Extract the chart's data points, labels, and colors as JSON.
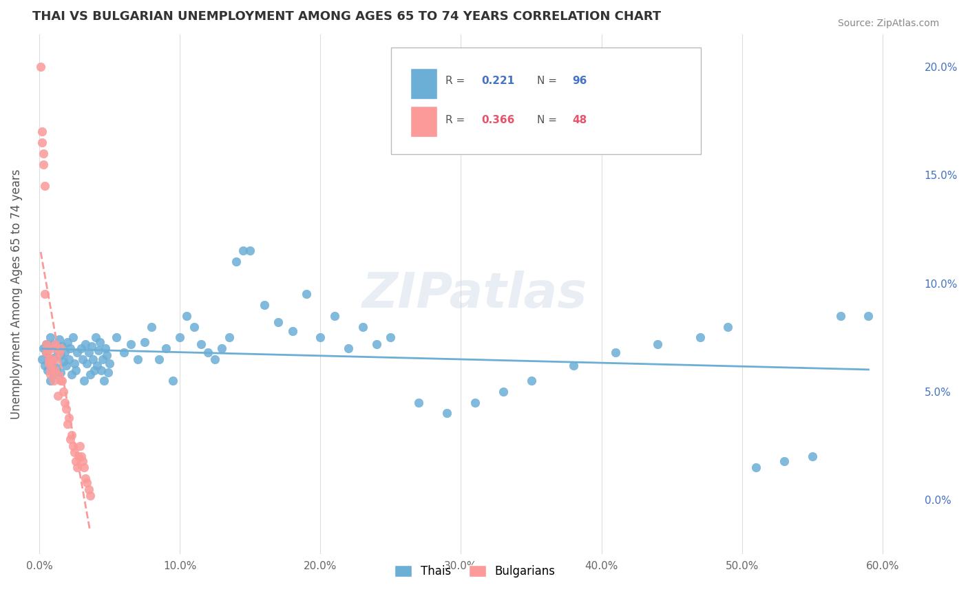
{
  "title": "THAI VS BULGARIAN UNEMPLOYMENT AMONG AGES 65 TO 74 YEARS CORRELATION CHART",
  "source": "Source: ZipAtlas.com",
  "ylabel": "Unemployment Among Ages 65 to 74 years",
  "xlabel_ticks": [
    "0.0%",
    "10.0%",
    "20.0%",
    "30.0%",
    "40.0%",
    "50.0%",
    "60.0%"
  ],
  "xlabel_vals": [
    0.0,
    0.1,
    0.2,
    0.3,
    0.4,
    0.5,
    0.6
  ],
  "ylabel_ticks": [
    "0.0%",
    "5.0%",
    "10.0%",
    "15.0%",
    "20.0%"
  ],
  "ylabel_vals": [
    0.0,
    0.05,
    0.1,
    0.15,
    0.2
  ],
  "xlim": [
    -0.005,
    0.625
  ],
  "ylim": [
    -0.025,
    0.215
  ],
  "thai_color": "#6baed6",
  "bulgarian_color": "#fb9a99",
  "thai_R": 0.221,
  "thai_N": 96,
  "bulgarian_R": 0.366,
  "bulgarian_N": 48,
  "watermark": "ZIPatlas",
  "thai_scatter_x": [
    0.002,
    0.003,
    0.004,
    0.005,
    0.005,
    0.006,
    0.007,
    0.008,
    0.008,
    0.009,
    0.01,
    0.01,
    0.011,
    0.012,
    0.013,
    0.014,
    0.015,
    0.015,
    0.016,
    0.017,
    0.018,
    0.019,
    0.02,
    0.021,
    0.022,
    0.023,
    0.024,
    0.025,
    0.026,
    0.027,
    0.03,
    0.031,
    0.032,
    0.033,
    0.034,
    0.035,
    0.036,
    0.037,
    0.038,
    0.039,
    0.04,
    0.041,
    0.042,
    0.043,
    0.044,
    0.045,
    0.046,
    0.047,
    0.048,
    0.049,
    0.05,
    0.055,
    0.06,
    0.065,
    0.07,
    0.075,
    0.08,
    0.085,
    0.09,
    0.095,
    0.1,
    0.105,
    0.11,
    0.115,
    0.12,
    0.125,
    0.13,
    0.135,
    0.14,
    0.145,
    0.15,
    0.16,
    0.17,
    0.18,
    0.19,
    0.2,
    0.21,
    0.22,
    0.23,
    0.24,
    0.25,
    0.27,
    0.29,
    0.31,
    0.33,
    0.35,
    0.38,
    0.41,
    0.44,
    0.47,
    0.49,
    0.51,
    0.53,
    0.55,
    0.57,
    0.59
  ],
  "thai_scatter_y": [
    0.065,
    0.07,
    0.062,
    0.068,
    0.072,
    0.06,
    0.065,
    0.055,
    0.075,
    0.063,
    0.058,
    0.072,
    0.066,
    0.061,
    0.069,
    0.074,
    0.067,
    0.059,
    0.071,
    0.064,
    0.068,
    0.062,
    0.073,
    0.065,
    0.07,
    0.058,
    0.075,
    0.063,
    0.06,
    0.068,
    0.07,
    0.065,
    0.055,
    0.072,
    0.063,
    0.068,
    0.058,
    0.071,
    0.065,
    0.06,
    0.075,
    0.062,
    0.069,
    0.073,
    0.06,
    0.065,
    0.055,
    0.07,
    0.067,
    0.059,
    0.063,
    0.075,
    0.068,
    0.072,
    0.065,
    0.073,
    0.08,
    0.065,
    0.07,
    0.055,
    0.075,
    0.085,
    0.08,
    0.072,
    0.068,
    0.065,
    0.07,
    0.075,
    0.11,
    0.115,
    0.115,
    0.09,
    0.082,
    0.078,
    0.095,
    0.075,
    0.085,
    0.07,
    0.08,
    0.072,
    0.075,
    0.045,
    0.04,
    0.045,
    0.05,
    0.055,
    0.062,
    0.068,
    0.072,
    0.075,
    0.08,
    0.015,
    0.018,
    0.02,
    0.085,
    0.085
  ],
  "bulgarian_scatter_x": [
    0.001,
    0.002,
    0.002,
    0.003,
    0.003,
    0.004,
    0.004,
    0.005,
    0.005,
    0.006,
    0.006,
    0.007,
    0.007,
    0.008,
    0.008,
    0.009,
    0.009,
    0.01,
    0.01,
    0.011,
    0.011,
    0.012,
    0.012,
    0.013,
    0.014,
    0.015,
    0.015,
    0.016,
    0.017,
    0.018,
    0.019,
    0.02,
    0.021,
    0.022,
    0.023,
    0.024,
    0.025,
    0.026,
    0.027,
    0.028,
    0.029,
    0.03,
    0.031,
    0.032,
    0.033,
    0.034,
    0.035,
    0.036
  ],
  "bulgarian_scatter_y": [
    0.2,
    0.165,
    0.17,
    0.155,
    0.16,
    0.145,
    0.095,
    0.068,
    0.072,
    0.07,
    0.068,
    0.065,
    0.063,
    0.06,
    0.058,
    0.065,
    0.063,
    0.07,
    0.055,
    0.06,
    0.072,
    0.065,
    0.058,
    0.048,
    0.068,
    0.07,
    0.055,
    0.055,
    0.05,
    0.045,
    0.042,
    0.035,
    0.038,
    0.028,
    0.03,
    0.025,
    0.022,
    0.018,
    0.015,
    0.02,
    0.025,
    0.02,
    0.018,
    0.015,
    0.01,
    0.008,
    0.005,
    0.002
  ]
}
